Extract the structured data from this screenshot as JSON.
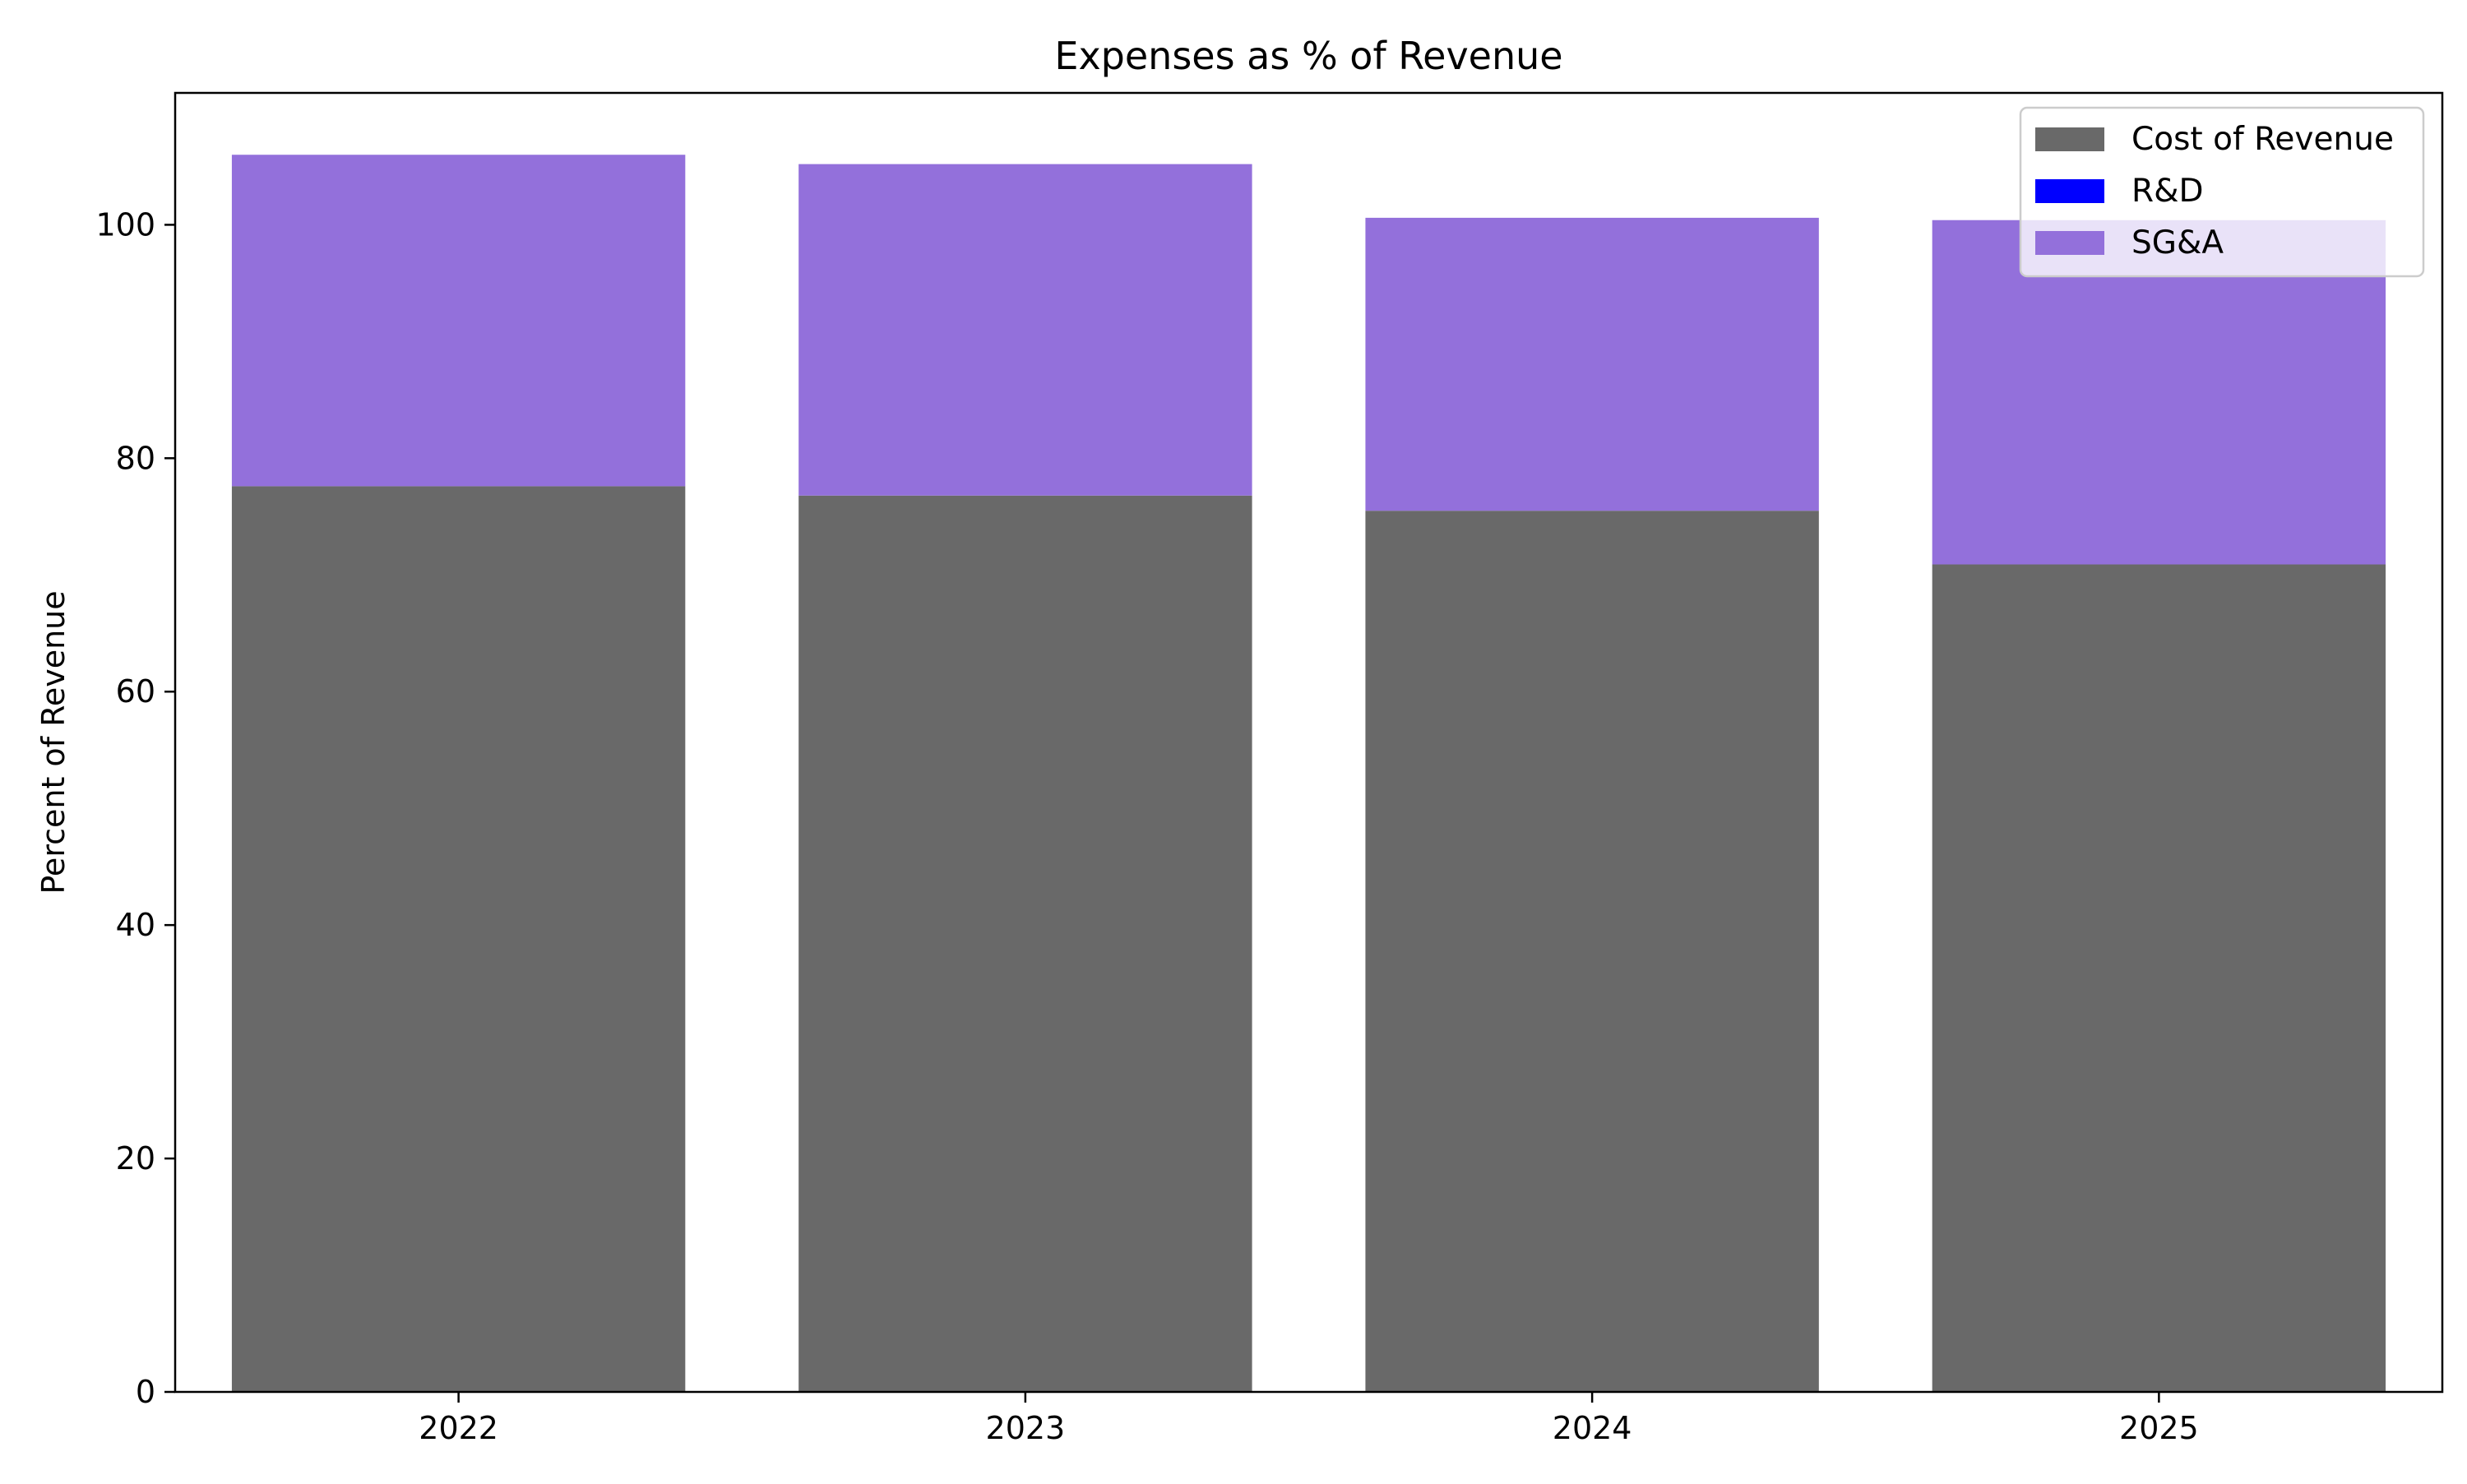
{
  "chart_data": {
    "type": "bar",
    "stacked": true,
    "title": "Expenses as % of Revenue",
    "xlabel": "",
    "ylabel": "Percent of Revenue",
    "categories": [
      "2022",
      "2023",
      "2024",
      "2025"
    ],
    "series": [
      {
        "name": "Cost of Revenue",
        "color": "#696969",
        "values": [
          77.6,
          76.8,
          75.5,
          70.9
        ]
      },
      {
        "name": "R&D",
        "color": "#0000ff",
        "values": [
          0,
          0,
          0,
          0
        ]
      },
      {
        "name": "SG&A",
        "color": "#9370db",
        "values": [
          28.4,
          28.4,
          25.1,
          29.5
        ]
      }
    ],
    "ylim": [
      0,
      111.3
    ],
    "yticks": [
      0,
      20,
      40,
      60,
      80,
      100
    ],
    "grid": false,
    "legend_position": "top-right"
  }
}
